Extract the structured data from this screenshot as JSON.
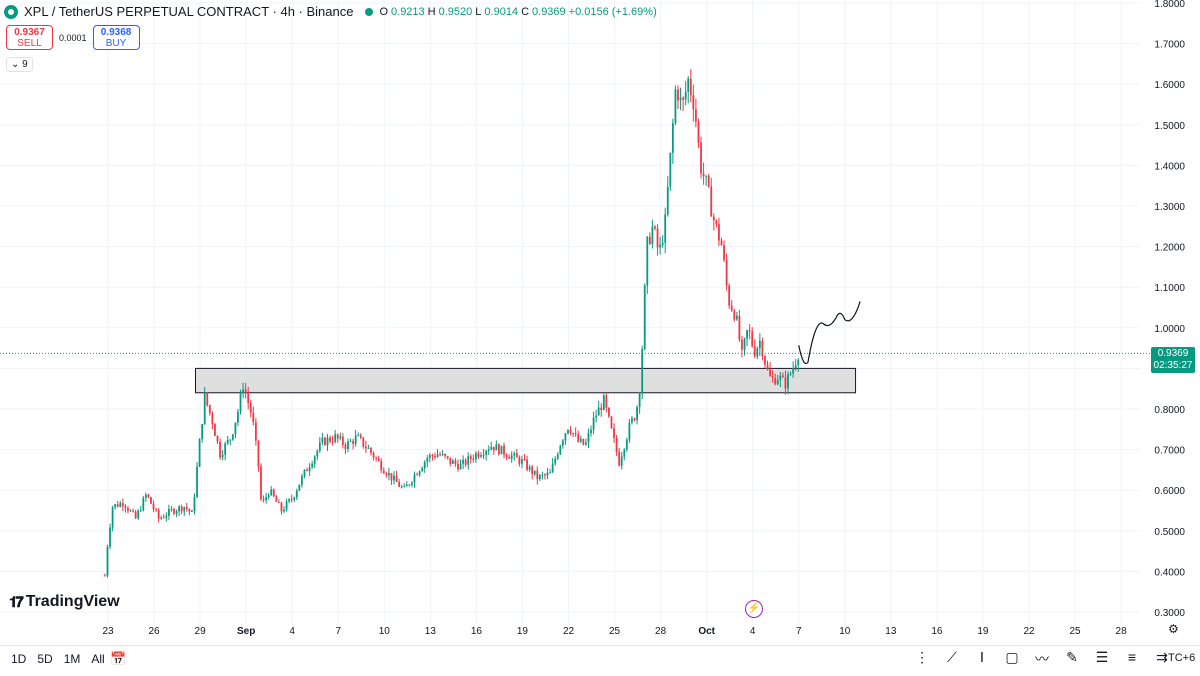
{
  "header": {
    "title": "XPL / TetherUS PERPETUAL CONTRACT · 4h · Binance",
    "ohlc": [
      {
        "k": "O",
        "v": "0.9213"
      },
      {
        "k": "H",
        "v": "0.9520"
      },
      {
        "k": "L",
        "v": "0.9014"
      },
      {
        "k": "C",
        "v": "0.9369"
      },
      {
        "k": "",
        "v": "+0.0156 (+1.69%)"
      }
    ]
  },
  "trade": {
    "sell_price": "0.9367",
    "sell_label": "SELL",
    "spread": "0.0001",
    "buy_price": "0.9368",
    "buy_label": "BUY"
  },
  "indicator_count": "9",
  "brand": "TradingView",
  "last_price": {
    "value": "0.9369",
    "countdown": "02:35:27"
  },
  "bottom_bar": {
    "periods": [
      "1D",
      "5D",
      "1M",
      "All"
    ],
    "timezone": "TC+6"
  },
  "colors": {
    "up": "#089981",
    "down": "#f23645",
    "zone": "#dcdcdc",
    "grid": "#f0f3fa"
  },
  "chart_data": {
    "type": "candlestick",
    "timeframe": "4h",
    "y_axis": {
      "min": 0.3,
      "max": 1.8,
      "scale": "linear",
      "ticks": [
        "0.3000",
        "0.4000",
        "0.5000",
        "0.6000",
        "0.7000",
        "0.8000",
        "0.9000",
        "1.0000",
        "1.1000",
        "1.2000",
        "1.3000",
        "1.4000",
        "1.5000",
        "1.6000",
        "1.7000",
        "1.8000"
      ]
    },
    "x_axis": {
      "ticks": [
        {
          "label": "23",
          "day": 0
        },
        {
          "label": "26",
          "day": 3
        },
        {
          "label": "29",
          "day": 6
        },
        {
          "label": "Sep",
          "day": 9
        },
        {
          "label": "4",
          "day": 12
        },
        {
          "label": "7",
          "day": 15
        },
        {
          "label": "10",
          "day": 18
        },
        {
          "label": "13",
          "day": 21
        },
        {
          "label": "16",
          "day": 24
        },
        {
          "label": "19",
          "day": 27
        },
        {
          "label": "22",
          "day": 30
        },
        {
          "label": "25",
          "day": 33
        },
        {
          "label": "28",
          "day": 36
        },
        {
          "label": "Oct",
          "day": 39
        },
        {
          "label": "4",
          "day": 42
        },
        {
          "label": "7",
          "day": 45
        },
        {
          "label": "10",
          "day": 48
        },
        {
          "label": "13",
          "day": 51
        },
        {
          "label": "16",
          "day": 54
        },
        {
          "label": "19",
          "day": 57
        },
        {
          "label": "22",
          "day": 60
        },
        {
          "label": "25",
          "day": 63
        },
        {
          "label": "28",
          "day": 66
        }
      ]
    },
    "price_path": [
      [
        -0.2,
        0.39
      ],
      [
        0.0,
        0.48
      ],
      [
        0.3,
        0.56
      ],
      [
        1.0,
        0.57
      ],
      [
        1.8,
        0.53
      ],
      [
        2.5,
        0.59
      ],
      [
        3.3,
        0.53
      ],
      [
        4.2,
        0.55
      ],
      [
        5.0,
        0.56
      ],
      [
        5.5,
        0.54
      ],
      [
        6.0,
        0.73
      ],
      [
        6.3,
        0.83
      ],
      [
        6.8,
        0.77
      ],
      [
        7.3,
        0.69
      ],
      [
        8.0,
        0.73
      ],
      [
        8.5,
        0.8
      ],
      [
        8.8,
        0.86
      ],
      [
        9.4,
        0.78
      ],
      [
        9.8,
        0.66
      ],
      [
        10.0,
        0.56
      ],
      [
        10.5,
        0.6
      ],
      [
        11.3,
        0.55
      ],
      [
        12.0,
        0.58
      ],
      [
        12.5,
        0.62
      ],
      [
        13.2,
        0.67
      ],
      [
        14.0,
        0.72
      ],
      [
        14.8,
        0.73
      ],
      [
        15.5,
        0.71
      ],
      [
        16.2,
        0.73
      ],
      [
        17.0,
        0.7
      ],
      [
        17.8,
        0.66
      ],
      [
        18.5,
        0.63
      ],
      [
        19.3,
        0.6
      ],
      [
        20.0,
        0.64
      ],
      [
        20.8,
        0.68
      ],
      [
        21.5,
        0.69
      ],
      [
        22.3,
        0.67
      ],
      [
        23.0,
        0.66
      ],
      [
        24.0,
        0.69
      ],
      [
        25.0,
        0.71
      ],
      [
        26.0,
        0.69
      ],
      [
        27.0,
        0.67
      ],
      [
        28.0,
        0.63
      ],
      [
        28.8,
        0.64
      ],
      [
        29.5,
        0.72
      ],
      [
        30.0,
        0.76
      ],
      [
        30.6,
        0.72
      ],
      [
        31.1,
        0.71
      ],
      [
        31.7,
        0.78
      ],
      [
        32.3,
        0.82
      ],
      [
        32.7,
        0.76
      ],
      [
        33.3,
        0.67
      ],
      [
        34.0,
        0.76
      ],
      [
        34.4,
        0.79
      ],
      [
        34.7,
        0.87
      ],
      [
        35.1,
        1.2
      ],
      [
        35.5,
        1.25
      ],
      [
        35.9,
        1.18
      ],
      [
        36.3,
        1.26
      ],
      [
        36.7,
        1.45
      ],
      [
        37.0,
        1.6
      ],
      [
        37.4,
        1.54
      ],
      [
        37.8,
        1.61
      ],
      [
        38.2,
        1.55
      ],
      [
        38.6,
        1.4
      ],
      [
        39.0,
        1.35
      ],
      [
        39.5,
        1.26
      ],
      [
        40.0,
        1.2
      ],
      [
        40.4,
        1.07
      ],
      [
        40.9,
        1.03
      ],
      [
        41.3,
        0.93
      ],
      [
        41.7,
        1.0
      ],
      [
        42.1,
        0.94
      ],
      [
        42.5,
        0.97
      ],
      [
        42.9,
        0.9
      ],
      [
        43.2,
        0.87
      ],
      [
        43.7,
        0.88
      ],
      [
        44.1,
        0.86
      ],
      [
        44.6,
        0.9
      ],
      [
        45.0,
        0.94
      ]
    ],
    "annotations": {
      "support_zone": {
        "price_low": 0.84,
        "price_high": 0.9,
        "day_start": 5.7,
        "day_end": 48.7
      },
      "last_price_line": 0.9369,
      "projection_path": [
        [
          45.0,
          0.957
        ],
        [
          45.6,
          0.915
        ],
        [
          46.6,
          1.01
        ],
        [
          47.5,
          1.03
        ],
        [
          48.0,
          1.02
        ],
        [
          49.0,
          1.065
        ]
      ]
    }
  }
}
